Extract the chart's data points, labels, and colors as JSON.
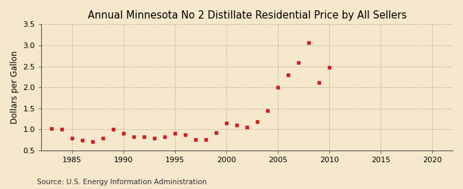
{
  "title": "Annual Minnesota No 2 Distillate Residential Price by All Sellers",
  "ylabel": "Dollars per Gallon",
  "source": "Source: U.S. Energy Information Administration",
  "background_color": "#f5e8cc",
  "plot_bg_color": "#f5e8cc",
  "marker_color": "#cc2222",
  "years": [
    1983,
    1984,
    1985,
    1986,
    1987,
    1988,
    1989,
    1990,
    1991,
    1992,
    1993,
    1994,
    1995,
    1996,
    1997,
    1998,
    1999,
    2000,
    2001,
    2002,
    2003,
    2004,
    2005,
    2006,
    2007,
    2008,
    2009,
    2010
  ],
  "values": [
    1.02,
    1.01,
    0.79,
    0.75,
    0.72,
    0.8,
    1.01,
    0.91,
    0.83,
    0.82,
    0.8,
    0.82,
    0.9,
    0.88,
    0.76,
    0.76,
    0.92,
    1.15,
    1.11,
    1.05,
    1.19,
    1.44,
    2.0,
    2.29,
    2.59,
    3.06,
    2.11,
    2.48
  ],
  "xlim": [
    1982,
    2022
  ],
  "ylim": [
    0.5,
    3.5
  ],
  "xticks": [
    1985,
    1990,
    1995,
    2000,
    2005,
    2010,
    2015,
    2020
  ],
  "yticks": [
    0.5,
    1.0,
    1.5,
    2.0,
    2.5,
    3.0,
    3.5
  ],
  "title_fontsize": 10.5,
  "label_fontsize": 8.5,
  "tick_fontsize": 8,
  "source_fontsize": 7.5
}
